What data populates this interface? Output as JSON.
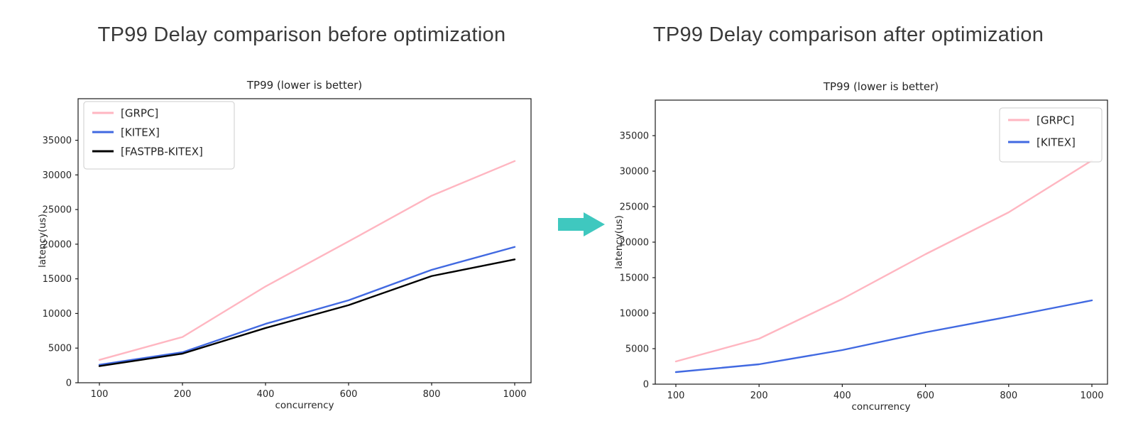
{
  "arrow_icon": {
    "color": "#3fc8bf"
  },
  "chart_data": [
    {
      "id": "before",
      "type": "line",
      "figure_title": "TP99 Delay comparison before optimization",
      "title": "TP99 (lower is better)",
      "xlabel": "concurrency",
      "ylabel": "latency(us)",
      "categories": [
        "100",
        "200",
        "400",
        "600",
        "800",
        "1000"
      ],
      "yticks": [
        0,
        5000,
        10000,
        15000,
        20000,
        25000,
        30000,
        35000
      ],
      "ylim": [
        0,
        41000
      ],
      "grid": false,
      "legend_position": "upper-left",
      "series": [
        {
          "name": "[GRPC]",
          "color": "#ffb6c1",
          "values": [
            3300,
            6600,
            13900,
            20400,
            27000,
            32000
          ]
        },
        {
          "name": "[KITEX]",
          "color": "#4169e1",
          "values": [
            2600,
            4400,
            8500,
            11900,
            16300,
            19600
          ]
        },
        {
          "name": "[FASTPB-KITEX]",
          "color": "#000000",
          "values": [
            2400,
            4200,
            7900,
            11200,
            15400,
            17800
          ]
        }
      ]
    },
    {
      "id": "after",
      "type": "line",
      "figure_title": "TP99 Delay comparison after optimization",
      "title": "TP99 (lower is better)",
      "xlabel": "concurrency",
      "ylabel": "latency(us)",
      "categories": [
        "100",
        "200",
        "400",
        "600",
        "800",
        "1000"
      ],
      "yticks": [
        0,
        5000,
        10000,
        15000,
        20000,
        25000,
        30000,
        35000
      ],
      "ylim": [
        0,
        40000
      ],
      "grid": false,
      "legend_position": "upper-right",
      "series": [
        {
          "name": "[GRPC]",
          "color": "#ffb6c1",
          "values": [
            3200,
            6400,
            12000,
            18300,
            24200,
            31500
          ]
        },
        {
          "name": "[KITEX]",
          "color": "#4169e1",
          "values": [
            1700,
            2800,
            4800,
            7300,
            9500,
            11800
          ]
        }
      ]
    }
  ]
}
